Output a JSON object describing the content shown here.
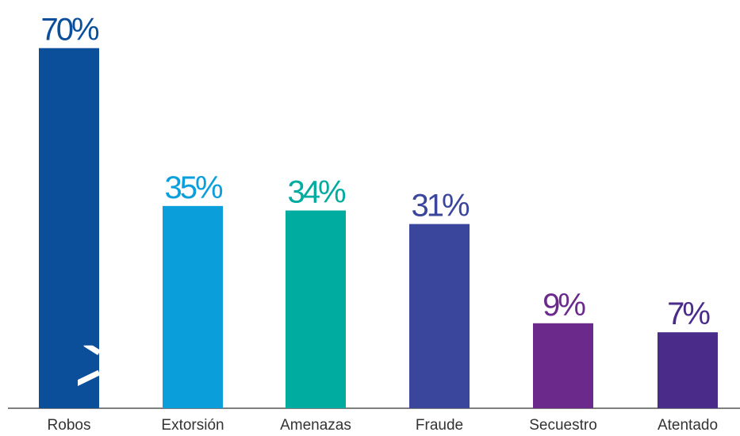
{
  "chart_data": {
    "type": "bar",
    "categories": [
      "Robos",
      "Extorsión",
      "Amenazas",
      "Fraude",
      "Secuestro",
      "Atentado"
    ],
    "values": [
      70,
      35,
      34,
      31,
      9,
      7
    ],
    "value_labels": [
      "70%",
      "35%",
      "34%",
      "31%",
      "9%",
      "7%"
    ],
    "colors": [
      "#0b4f9b",
      "#0a9edb",
      "#00ac9f",
      "#3a469b",
      "#6b2a8b",
      "#4a2b8a"
    ]
  }
}
